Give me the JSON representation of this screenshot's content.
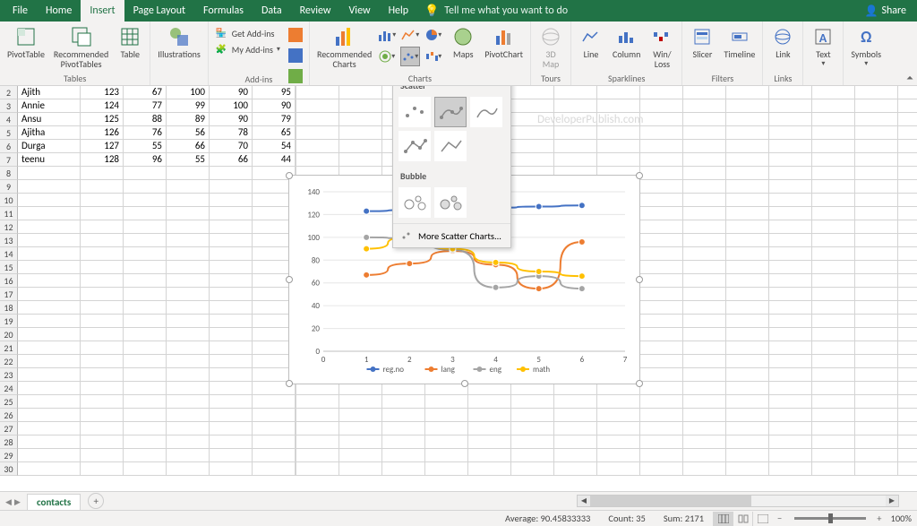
{
  "menu": {
    "tabs": [
      "File",
      "Home",
      "Insert",
      "Page Layout",
      "Formulas",
      "Data",
      "Review",
      "View",
      "Help"
    ],
    "active": "Insert",
    "search_placeholder": "Tell me what you want to do",
    "share": "Share"
  },
  "ribbon": {
    "groups": {
      "tables": {
        "label": "Tables",
        "pivotTable": "PivotTable",
        "recommended": "Recommended\nPivotTables",
        "table": "Table"
      },
      "illustrations": {
        "label": "Illustrations"
      },
      "addins": {
        "label": "Add-ins",
        "get": "Get Add-ins",
        "my": "My Add-ins"
      },
      "charts": {
        "label": "Charts",
        "recommended": "Recommended\nCharts",
        "maps": "Maps",
        "pivotChart": "PivotChart"
      },
      "tours": {
        "label": "Tours",
        "map3d": "3D\nMap"
      },
      "sparklines": {
        "label": "Sparklines",
        "line": "Line",
        "column": "Column",
        "winloss": "Win/\nLoss"
      },
      "filters": {
        "label": "Filters",
        "slicer": "Slicer",
        "timeline": "Timeline"
      },
      "links": {
        "label": "Links",
        "link": "Link"
      },
      "text": {
        "label": "Text"
      },
      "symbols": {
        "label": "Symbols"
      }
    }
  },
  "scattermenu": {
    "scatter": "Scatter",
    "bubble": "Bubble",
    "more": "More Scatter Charts..."
  },
  "watermark": "DeveloperPublish.com",
  "table": {
    "rows": [
      {
        "r": 2,
        "name": "Ajith",
        "c1": 123,
        "c2": 67,
        "c3": 100,
        "c4": 90,
        "c5": 95
      },
      {
        "r": 3,
        "name": "Annie",
        "c1": 124,
        "c2": 77,
        "c3": 99,
        "c4": 100,
        "c5": 90
      },
      {
        "r": 4,
        "name": "Ansu",
        "c1": 125,
        "c2": 88,
        "c3": 89,
        "c4": 90,
        "c5": 79
      },
      {
        "r": 5,
        "name": "Ajitha",
        "c1": 126,
        "c2": 76,
        "c3": 56,
        "c4": 78,
        "c5": 65
      },
      {
        "r": 6,
        "name": "Durga",
        "c1": 127,
        "c2": 55,
        "c3": 66,
        "c4": 70,
        "c5": 54
      },
      {
        "r": 7,
        "name": "teenu",
        "c1": 128,
        "c2": 96,
        "c3": 55,
        "c4": 66,
        "c5": 44
      }
    ]
  },
  "chart": {
    "type": "scatter-smooth-markers",
    "xlim": [
      0,
      7
    ],
    "ylim": [
      0,
      140
    ],
    "ytick_step": 20,
    "xtick_step": 1,
    "background_color": "#ffffff",
    "grid_color": "#e6e6e6",
    "axis_color": "#bfbfbf",
    "label_fontsize": 9,
    "legend_position": "bottom",
    "series": [
      {
        "name": "reg.no",
        "color": "#4472c4",
        "marker": "circle",
        "x": [
          1,
          2,
          3,
          4,
          5,
          6
        ],
        "y": [
          123,
          124,
          125,
          126,
          127,
          128
        ]
      },
      {
        "name": "lang",
        "color": "#ed7d31",
        "marker": "circle",
        "x": [
          1,
          2,
          3,
          4,
          5,
          6
        ],
        "y": [
          67,
          77,
          88,
          76,
          55,
          96
        ]
      },
      {
        "name": "eng",
        "color": "#a5a5a5",
        "marker": "circle",
        "x": [
          1,
          2,
          3,
          4,
          5,
          6
        ],
        "y": [
          100,
          99,
          89,
          56,
          66,
          55
        ]
      },
      {
        "name": "math",
        "color": "#ffc000",
        "marker": "circle",
        "x": [
          1,
          2,
          3,
          4,
          5,
          6
        ],
        "y": [
          90,
          100,
          90,
          78,
          70,
          66
        ]
      }
    ]
  },
  "sheet": {
    "active": "contacts"
  },
  "status": {
    "average_label": "Average:",
    "average": "90.45833333",
    "count_label": "Count:",
    "count": "35",
    "sum_label": "Sum:",
    "sum": "2171",
    "zoom": "100%"
  }
}
